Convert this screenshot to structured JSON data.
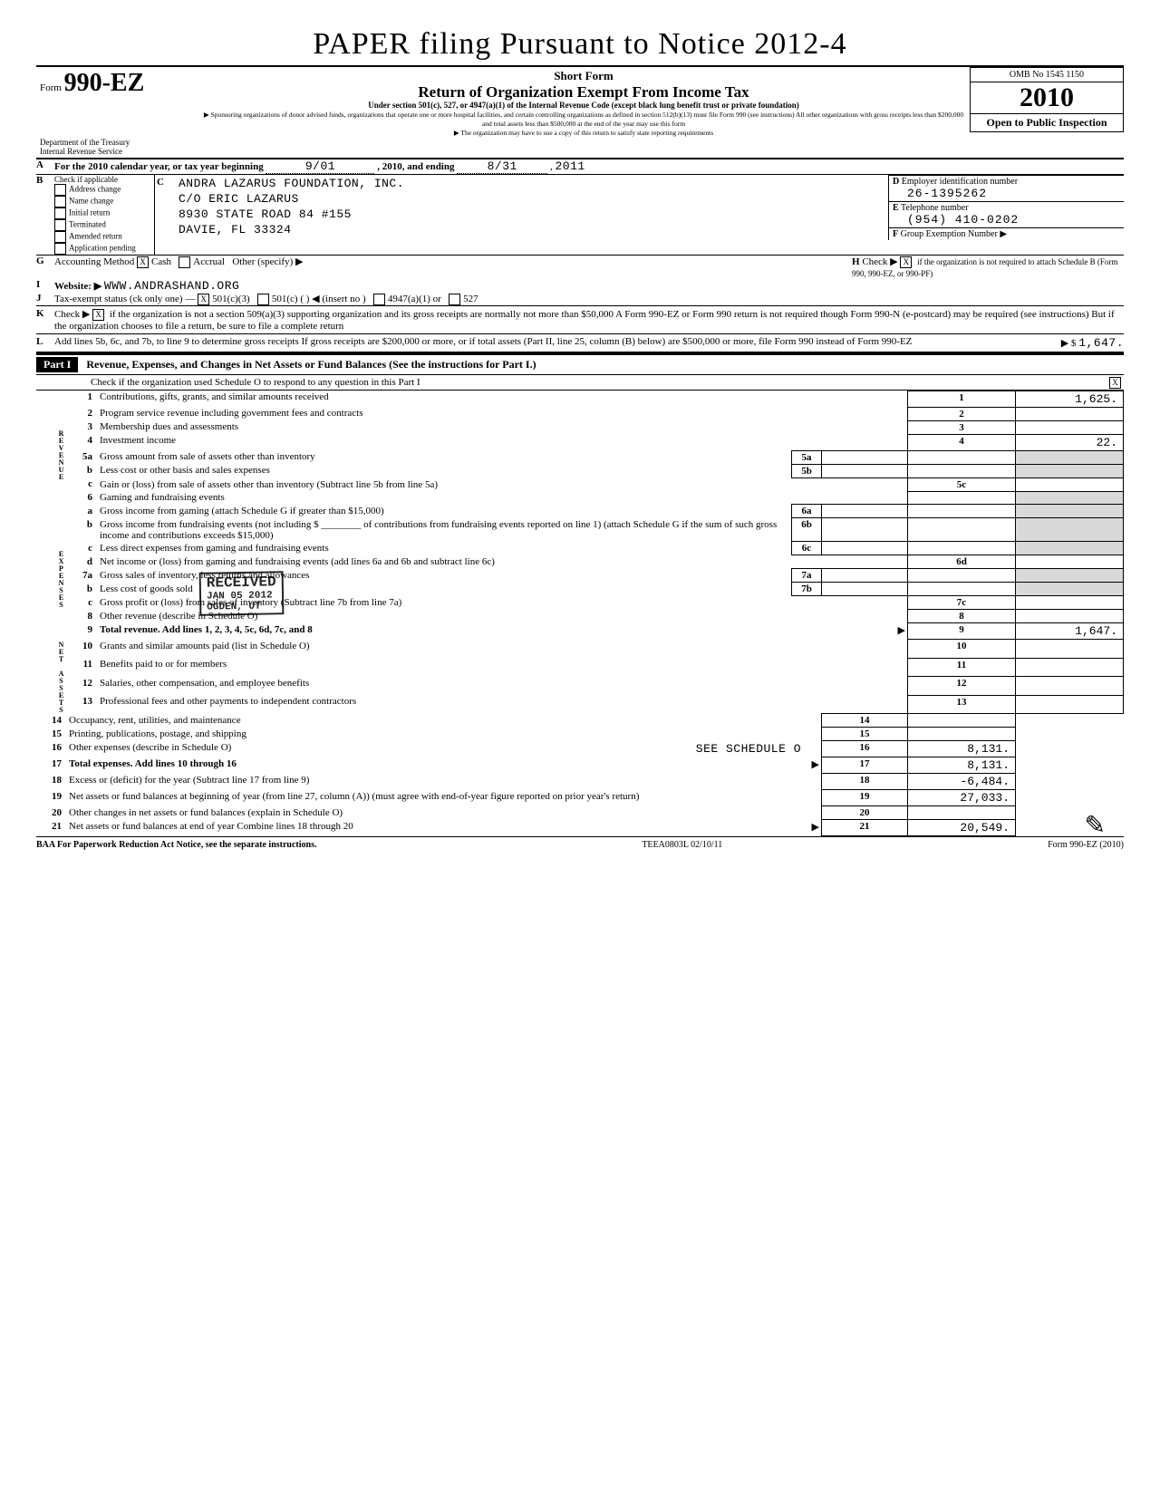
{
  "handwritten_top": "PAPER filing Pursuant to Notice 2012-4",
  "form": {
    "prefix": "Form",
    "number": "990-EZ",
    "short": "Short Form",
    "title": "Return of Organization Exempt From Income Tax",
    "subtitle": "Under section 501(c), 527, or 4947(a)(1) of the Internal Revenue Code\n(except black lung benefit trust or private foundation)",
    "sponsor_note": "▶ Sponsoring organizations of donor advised funds, organizations that operate one or more hospital facilities, and certain controlling organizations as defined in section 512(b)(13) must file Form 990 (see instructions)  All other organizations with gross receipts less than $200,000 and total assets less than $500,000 at the end of the year may use this form",
    "copy_note": "▶ The organization may have to use a copy of this return to satisfy state reporting requirements",
    "dept1": "Department of the Treasury",
    "dept2": "Internal Revenue Service",
    "omb": "OMB No  1545 1150",
    "year": "2010",
    "open": "Open to Public Inspection"
  },
  "lineA": {
    "text": "For the 2010 calendar year, or tax year beginning",
    "begin": "9/01",
    "mid": ", 2010, and ending",
    "end": "8/31",
    "year": "2011"
  },
  "lineB": {
    "label": "Check if applicable",
    "opts": [
      "Address change",
      "Name change",
      "Initial return",
      "Terminated",
      "Amended return",
      "Application pending"
    ]
  },
  "lineC": {
    "name": "ANDRA LAZARUS FOUNDATION, INC.",
    "co": "C/O ERIC LAZARUS",
    "street": "8930 STATE ROAD 84 #155",
    "city": "DAVIE, FL 33324"
  },
  "lineD": {
    "label": "Employer identification number",
    "val": "26-1395262"
  },
  "lineE": {
    "label": "Telephone number",
    "val": "(954) 410-0202"
  },
  "lineF": {
    "label": "Group Exemption Number",
    "arrow": "▶"
  },
  "lineG": {
    "label": "Accounting Method",
    "cash": "Cash",
    "accrual": "Accrual",
    "other": "Other (specify) ▶",
    "cash_x": "X"
  },
  "lineH": {
    "text": "Check ▶",
    "x": "X",
    "rest": "if the organization is not required to attach Schedule B (Form 990, 990-EZ, or 990-PF)"
  },
  "lineI": {
    "label": "Website: ▶",
    "val": "WWW.ANDRASHAND.ORG"
  },
  "lineJ": {
    "label": "Tax-exempt status (ck only one) —",
    "x501c3": "X",
    "a": "501(c)(3)",
    "b": "501(c) (        ) ◀ (insert no )",
    "c": "4947(a)(1) or",
    "d": "527"
  },
  "lineK": {
    "text": "Check ▶",
    "x": "X",
    "rest": "if the organization is not a section 509(a)(3) supporting organization and its gross receipts are normally not more than $50,000  A Form 990-EZ or Form 990 return is not required though Form 990-N (e-postcard) may be required (see instructions)  But if the organization chooses to file a return, be sure to file a complete return"
  },
  "lineL": {
    "text": "Add lines 5b, 6c, and 7b, to line 9 to determine gross receipts  If gross receipts are $200,000 or more, or if total assets (Part II, line 25, column (B) below) are $500,000 or more, file Form 990 instead of Form 990-EZ",
    "arrow": "▶ $",
    "val": "1,647."
  },
  "partI": {
    "bar": "Part I",
    "title": "Revenue, Expenses, and Changes in Net Assets or Fund Balances (See the instructions for Part I.)",
    "schedO": "Check if the organization used Schedule O to respond to any question in this Part I",
    "schedO_x": "X"
  },
  "vert_labels": {
    "rev": "REVENUE",
    "exp": "EXPENSES",
    "net": "NET ASSETS"
  },
  "lines": [
    {
      "n": "1",
      "t": "Contributions, gifts, grants, and similar amounts received",
      "box": "1",
      "amt": "1,625."
    },
    {
      "n": "2",
      "t": "Program service revenue including government fees and contracts",
      "box": "2",
      "amt": ""
    },
    {
      "n": "3",
      "t": "Membership dues and assessments",
      "box": "3",
      "amt": ""
    },
    {
      "n": "4",
      "t": "Investment income",
      "box": "4",
      "amt": "22."
    },
    {
      "n": "5a",
      "t": "Gross amount from sale of assets other than inventory",
      "mid": "5a"
    },
    {
      "n": "b",
      "t": "Less  cost or other basis and sales expenses",
      "mid": "5b"
    },
    {
      "n": "c",
      "t": "Gain or (loss) from sale of assets other than inventory (Subtract line 5b from line 5a)",
      "box": "5c",
      "amt": ""
    },
    {
      "n": "6",
      "t": "Gaming and fundraising events"
    },
    {
      "n": "a",
      "t": "Gross income from gaming (attach Schedule G if greater than $15,000)",
      "mid": "6a"
    },
    {
      "n": "b",
      "t": "Gross income from fundraising events (not including $ ________ of contributions from fundraising events reported on line 1) (attach Schedule G if the sum of such gross income and contributions exceeds $15,000)",
      "mid": "6b"
    },
    {
      "n": "c",
      "t": "Less  direct expenses from gaming and fundraising events",
      "mid": "6c"
    },
    {
      "n": "d",
      "t": "Net income or (loss) from gaming and fundraising events (add lines 6a and 6b and subtract line 6c)",
      "box": "6d",
      "amt": ""
    },
    {
      "n": "7a",
      "t": "Gross sales of inventory, less returns and allowances",
      "mid": "7a"
    },
    {
      "n": "b",
      "t": "Less  cost of goods sold",
      "mid": "7b"
    },
    {
      "n": "c",
      "t": "Gross profit or (loss) from sales of inventory (Subtract line 7b from line 7a)",
      "box": "7c",
      "amt": ""
    },
    {
      "n": "8",
      "t": "Other revenue (describe in Schedule O)",
      "box": "8",
      "amt": ""
    },
    {
      "n": "9",
      "t": "Total revenue. Add lines 1, 2, 3, 4, 5c, 6d, 7c, and 8",
      "box": "9",
      "amt": "1,647.",
      "bold": true,
      "arrow": true
    },
    {
      "n": "10",
      "t": "Grants and similar amounts paid (list in Schedule O)",
      "box": "10",
      "amt": ""
    },
    {
      "n": "11",
      "t": "Benefits paid to or for members",
      "box": "11",
      "amt": ""
    },
    {
      "n": "12",
      "t": "Salaries, other compensation, and employee benefits",
      "box": "12",
      "amt": ""
    },
    {
      "n": "13",
      "t": "Professional fees and other payments to independent contractors",
      "box": "13",
      "amt": ""
    },
    {
      "n": "14",
      "t": "Occupancy, rent, utilities, and maintenance",
      "box": "14",
      "amt": ""
    },
    {
      "n": "15",
      "t": "Printing, publications, postage, and shipping",
      "box": "15",
      "amt": ""
    },
    {
      "n": "16",
      "t": "Other expenses (describe in Schedule O)",
      "extra": "SEE SCHEDULE O",
      "box": "16",
      "amt": "8,131."
    },
    {
      "n": "17",
      "t": "Total expenses. Add lines 10 through 16",
      "box": "17",
      "amt": "8,131.",
      "bold": true,
      "arrow": true
    },
    {
      "n": "18",
      "t": "Excess or (deficit) for the year (Subtract line 17 from line 9)",
      "box": "18",
      "amt": "-6,484."
    },
    {
      "n": "19",
      "t": "Net assets or fund balances at beginning of year (from line 27, column (A)) (must agree with end-of-year figure reported on prior year's return)",
      "box": "19",
      "amt": "27,033."
    },
    {
      "n": "20",
      "t": "Other changes in net assets or fund balances (explain in Schedule O)",
      "box": "20",
      "amt": ""
    },
    {
      "n": "21",
      "t": "Net assets or fund balances at end of year  Combine lines 18 through 20",
      "box": "21",
      "amt": "20,549.",
      "arrow": true
    }
  ],
  "stamp": {
    "l1": "RECEIVED",
    "l2": "JAN 05 2012",
    "l3": "OGDEN, UT"
  },
  "footer": {
    "left": "BAA For Paperwork Reduction Act Notice, see the separate instructions.",
    "mid": "TEEA0803L  02/10/11",
    "right": "Form 990-EZ (2010)"
  }
}
